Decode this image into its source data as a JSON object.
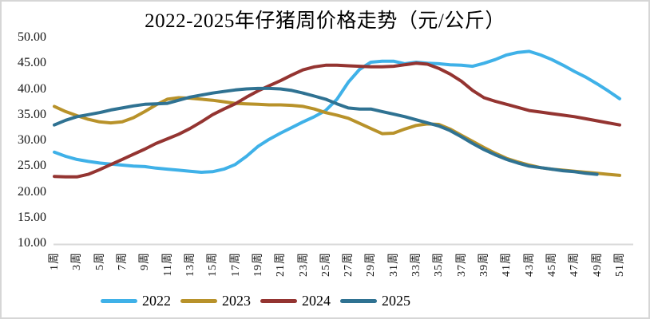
{
  "chart_data": {
    "type": "line",
    "title": "2022-2025年仔猪周价格走势（元/公斤）",
    "grid": false,
    "y_axis": {
      "ticks": [
        10,
        15,
        20,
        25,
        30,
        35,
        40,
        45,
        50
      ],
      "tick_format": "0.00",
      "range": [
        10,
        50
      ],
      "axis_line_color": "#dadada"
    },
    "x_axis": {
      "unit_suffix": "周",
      "weeks_domain": [
        1,
        51
      ],
      "label_weeks": [
        1,
        3,
        5,
        7,
        9,
        11,
        13,
        15,
        17,
        19,
        21,
        23,
        25,
        27,
        29,
        31,
        33,
        35,
        37,
        39,
        41,
        43,
        45,
        47,
        49,
        51
      ],
      "tick_labels": [
        "1周",
        "3周",
        "5周",
        "7周",
        "9周",
        "11周",
        "13周",
        "15周",
        "17周",
        "19周",
        "21周",
        "23周",
        "25周",
        "27周",
        "29周",
        "31周",
        "33周",
        "35周",
        "37周",
        "39周",
        "41周",
        "43周",
        "45周",
        "47周",
        "49周",
        "51周"
      ]
    },
    "legend": {
      "position": "bottom",
      "items": [
        "2022",
        "2023",
        "2024",
        "2025"
      ]
    },
    "series": [
      {
        "name": "2022",
        "color": "#3fb1e8",
        "start_week": 1,
        "values": [
          27.7,
          26.9,
          26.3,
          25.9,
          25.6,
          25.4,
          25.2,
          25.0,
          24.9,
          24.6,
          24.4,
          24.2,
          24.0,
          23.8,
          23.9,
          24.4,
          25.3,
          26.9,
          28.8,
          30.2,
          31.4,
          32.5,
          33.6,
          34.6,
          35.8,
          38.0,
          41.3,
          43.8,
          45.2,
          45.4,
          45.4,
          44.9,
          45.2,
          45.0,
          44.9,
          44.7,
          44.6,
          44.4,
          45.0,
          45.7,
          46.6,
          47.1,
          47.3,
          46.6,
          45.7,
          44.6,
          43.4,
          42.3,
          41.0,
          39.6,
          38.1
        ]
      },
      {
        "name": "2023",
        "color": "#b8922a",
        "start_week": 1,
        "values": [
          36.6,
          35.6,
          34.8,
          34.1,
          33.6,
          33.4,
          33.6,
          34.4,
          35.6,
          36.9,
          38.0,
          38.3,
          38.2,
          38.0,
          37.8,
          37.5,
          37.2,
          37.1,
          37.0,
          36.9,
          36.9,
          36.8,
          36.6,
          36.1,
          35.4,
          34.9,
          34.3,
          33.3,
          32.3,
          31.3,
          31.4,
          32.2,
          32.9,
          33.2,
          33.1,
          32.2,
          31.0,
          29.8,
          28.6,
          27.5,
          26.5,
          25.8,
          25.2,
          24.7,
          24.4,
          24.2,
          24.0,
          23.8,
          23.6,
          23.4,
          23.2
        ]
      },
      {
        "name": "2024",
        "color": "#943431",
        "start_week": 1,
        "values": [
          23.0,
          22.9,
          22.9,
          23.4,
          24.3,
          25.3,
          26.3,
          27.3,
          28.3,
          29.4,
          30.3,
          31.2,
          32.3,
          33.6,
          35.0,
          36.1,
          37.1,
          38.4,
          39.6,
          40.6,
          41.6,
          42.7,
          43.7,
          44.3,
          44.6,
          44.6,
          44.5,
          44.4,
          44.3,
          44.3,
          44.4,
          44.7,
          45.0,
          44.8,
          44.0,
          42.9,
          41.5,
          39.7,
          38.3,
          37.6,
          37.0,
          36.4,
          35.8,
          35.5,
          35.2,
          34.9,
          34.6,
          34.2,
          33.8,
          33.4,
          33.0
        ]
      },
      {
        "name": "2025",
        "color": "#2f7292",
        "start_week": 1,
        "values": [
          33.0,
          33.9,
          34.6,
          35.0,
          35.4,
          35.9,
          36.3,
          36.7,
          37.0,
          37.1,
          37.2,
          37.8,
          38.4,
          38.8,
          39.2,
          39.5,
          39.8,
          40.0,
          40.1,
          40.1,
          40.0,
          39.7,
          39.2,
          38.6,
          38.0,
          37.1,
          36.3,
          36.1,
          36.1,
          35.6,
          35.1,
          34.6,
          34.0,
          33.4,
          32.8,
          31.9,
          30.7,
          29.4,
          28.2,
          27.2,
          26.3,
          25.6,
          25.0,
          24.7,
          24.4,
          24.1,
          23.9,
          23.6,
          23.4
        ]
      }
    ]
  }
}
